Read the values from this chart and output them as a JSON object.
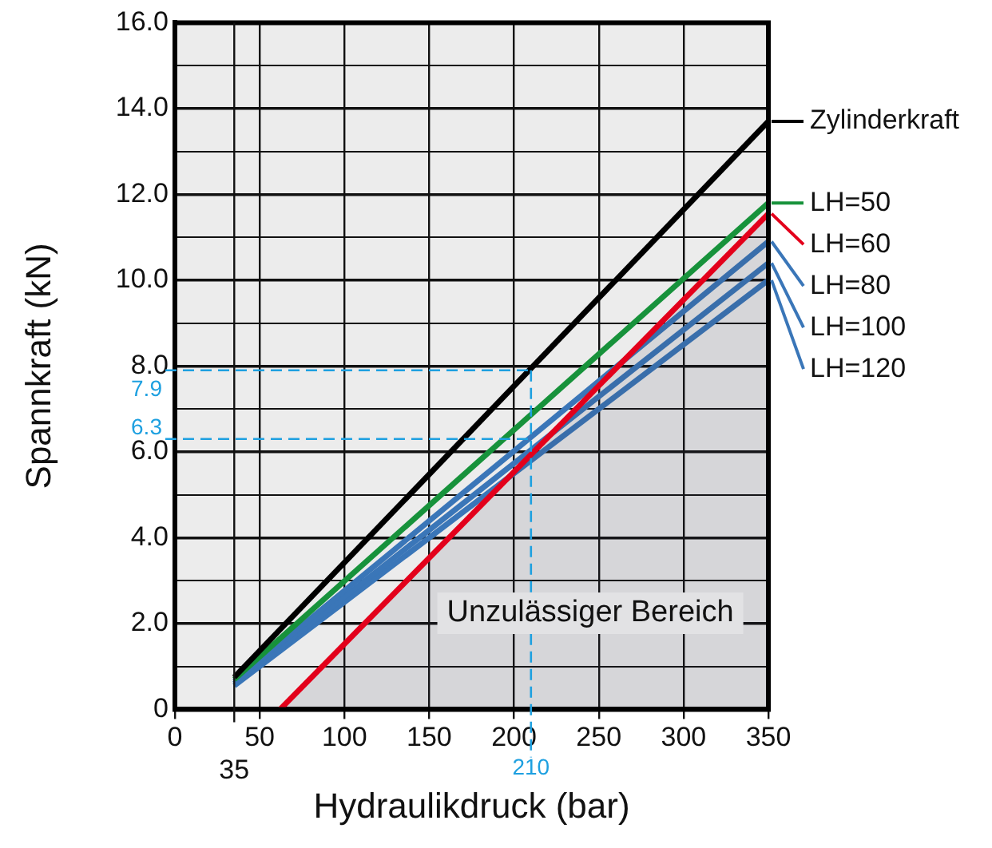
{
  "chart_data": {
    "type": "line",
    "xlabel": "Hydraulikdruck (bar)",
    "ylabel": "Spannkraft (kN)",
    "xlim": [
      0,
      350
    ],
    "xticks": [
      0,
      50,
      100,
      150,
      200,
      250,
      300,
      350
    ],
    "ylim": [
      0,
      16
    ],
    "yticks": [
      0,
      {
        "value": 1,
        "label": null
      },
      {
        "value": 2,
        "label": "2.0"
      },
      {
        "value": 3,
        "label": null
      },
      {
        "value": 4,
        "label": "4.0"
      },
      {
        "value": 5,
        "label": null
      },
      {
        "value": 6,
        "label": "6.0"
      },
      {
        "value": 7,
        "label": null
      },
      {
        "value": 8,
        "label": "8.0"
      },
      {
        "value": 9,
        "label": null
      },
      {
        "value": 10,
        "label": "10.0"
      },
      {
        "value": 11,
        "label": null
      },
      {
        "value": 12,
        "label": "12.0"
      },
      {
        "value": 13,
        "label": null
      },
      {
        "value": 14,
        "label": "14.0"
      },
      {
        "value": 15,
        "label": null
      },
      {
        "value": 16,
        "label": "16.0"
      }
    ],
    "grid": true,
    "legend": "right",
    "marker": "none",
    "line_style": "solid",
    "series": [
      {
        "name": "Zylinderkraft",
        "color": "#000000",
        "x": [
          35,
          350
        ],
        "values": [
          0.75,
          13.7
        ]
      },
      {
        "name": "LH=50",
        "color": "#17923b",
        "x": [
          35,
          350
        ],
        "values": [
          0.7,
          11.8
        ]
      },
      {
        "name": "LH=60",
        "color": "#e3001b",
        "type": "area",
        "x": [
          62,
          350
        ],
        "values": [
          0,
          11.55
        ]
      },
      {
        "name": "LH=80",
        "color": "#3a76b8",
        "x": [
          35,
          350
        ],
        "values": [
          0.65,
          10.9
        ]
      },
      {
        "name": "LH=100",
        "color": "#3a76b8",
        "x": [
          35,
          350
        ],
        "values": [
          0.6,
          10.4
        ]
      },
      {
        "name": "LH=120",
        "color": "#3a76b8",
        "x": [
          35,
          350
        ],
        "values": [
          0.55,
          10.0
        ]
      }
    ],
    "ref_lines": [
      {
        "axis": "y",
        "value": 7.9,
        "label": "7.9",
        "color": "#1ea0e0",
        "line_style": "dashed"
      },
      {
        "axis": "y",
        "value": 6.3,
        "label": "6.3",
        "color": "#1ea0e0",
        "line_style": "dashed"
      },
      {
        "axis": "x",
        "value": 210,
        "label": "210",
        "color": "#1ea0e0",
        "line_style": "dashed"
      },
      {
        "axis": "x",
        "value": 35,
        "label": "35",
        "color": "#111111",
        "line_style": "solid"
      }
    ],
    "annotations": [
      "Unzulässiger Bereich"
    ]
  }
}
